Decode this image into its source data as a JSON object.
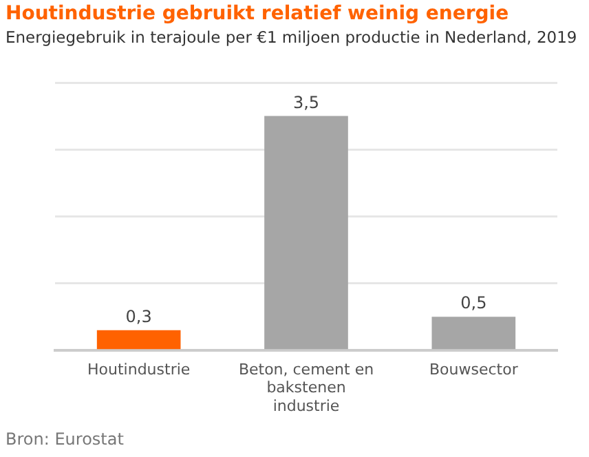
{
  "chart_data": {
    "type": "bar",
    "title": "Houtindustrie gebruikt relatief weinig energie",
    "subtitle": "Energiegebruik in terajoule per €1 miljoen productie in Nederland, 2019",
    "categories": [
      "Houtindustrie",
      "Beton, cement en bakstenen industrie",
      "Bouwsector"
    ],
    "values": [
      0.3,
      3.5,
      0.5
    ],
    "colors": [
      "#ff6200",
      "#a6a6a6",
      "#a6a6a6"
    ],
    "value_labels": [
      "0,3",
      "3,5",
      "0,5"
    ],
    "ylim": [
      0,
      4
    ],
    "yticks": [
      0,
      1,
      2,
      3,
      4
    ],
    "tick_labels": "x",
    "grid": "y",
    "legend": false,
    "annotations": [
      "Bron: Eurostat"
    ]
  }
}
